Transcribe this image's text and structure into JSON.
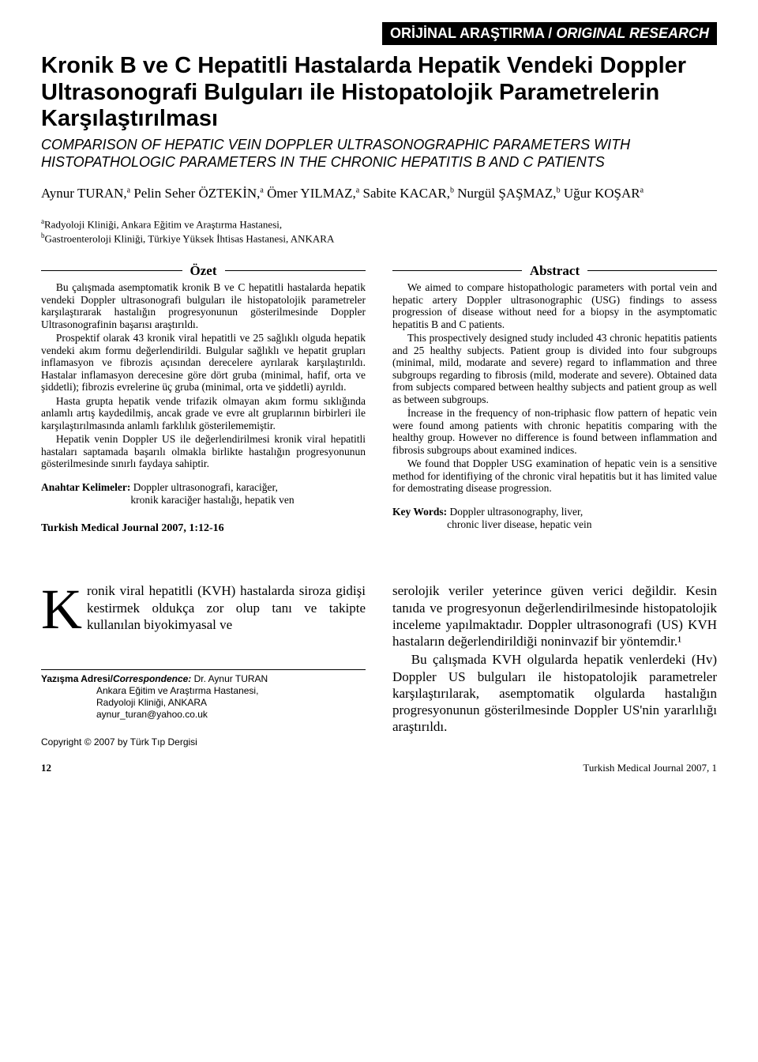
{
  "banner": {
    "left": "ORİJİNAL ARAŞTIRMA / ",
    "right": "ORIGINAL RESEARCH"
  },
  "title": "Kronik B ve C Hepatitli Hastalarda Hepatik Vendeki Doppler Ultrasonografi Bulguları ile Histopatolojik Parametrelerin Karşılaştırılması",
  "subtitle": "COMPARISON OF HEPATIC VEIN DOPPLER ULTRASONOGRAPHIC PARAMETERS WITH HISTOPATHOLOGIC PARAMETERS IN THE CHRONIC HEPATITIS B AND C PATIENTS",
  "authors_html": "Aynur TURAN,<sup>a</sup> Pelin Seher ÖZTEKİN,<sup>a</sup> Ömer YILMAZ,<sup>a</sup> Sabite KACAR,<sup>b</sup> Nurgül ŞAŞMAZ,<sup>b</sup> Uğur KOŞAR<sup>a</sup>",
  "affil_html": "<sup>a</sup>Radyoloji Kliniği, Ankara Eğitim ve Araştırma Hastanesi,<br><sup>b</sup>Gastroenteroloji Kliniği, Türkiye Yüksek İhtisas Hastanesi, ANKARA",
  "ozet": {
    "label": "Özet",
    "paras": [
      "Bu çalışmada asemptomatik kronik B ve C hepatitli hastalarda hepatik vendeki Doppler ultrasonografi bulguları ile histopatolojik parametreler karşılaştırarak hastalığın progresyonunun gösterilmesinde Doppler Ultrasonografinin başarısı araştırıldı.",
      "Prospektif olarak 43 kronik viral hepatitli ve 25 sağlıklı olguda hepatik vendeki akım formu değerlendirildi. Bulgular sağlıklı ve hepatit grupları inflamasyon ve fibrozis açısından derecelere ayrılarak karşılaştırıldı. Hastalar inflamasyon derecesine göre dört gruba (minimal, hafif, orta ve şiddetli); fibrozis evrelerine üç gruba (minimal, orta ve şiddetli) ayrıldı.",
      "Hasta grupta hepatik vende trifazik olmayan akım formu sıklığında anlamlı artış kaydedilmiş, ancak grade ve evre alt gruplarının birbirleri ile karşılaştırılmasında anlamlı farklılık gösterilememiştir.",
      "Hepatik venin Doppler US ile değerlendirilmesi kronik viral hepatitli hastaları saptamada başarılı olmakla birlikte hastalığın progresyonunun gösterilmesinde sınırlı faydaya sahiptir."
    ]
  },
  "abstract": {
    "label": "Abstract",
    "paras": [
      "We aimed to compare histopathologic parameters with portal vein and hepatic artery Doppler ultrasonographic (USG) findings to assess progression of disease without need for a biopsy in the asymptomatic hepatitis B and C patients.",
      "This prospectively designed study included 43 chronic hepatitis patients and 25 healthy subjects. Patient group is divided into four subgroups (minimal, mild, modarate and severe) regard to inflammation and three subgroups regarding to fibrosis (mild, moderate and severe). Obtained data from subjects compared between healthy subjects and patient group as well as between subgroups.",
      "İncrease in the frequency of non-triphasic flow pattern of hepatic vein were found among patients with chronic hepatitis comparing with the healthy group. However no difference is found between inflammation and fibrosis subgroups about examined indices.",
      "We found that Doppler USG examination of hepatic vein is a sensitive method for identifiying of the chronic viral hepatitis but it has limited value for demostrating disease progression."
    ]
  },
  "kw_tr": {
    "label": "Anahtar Kelimeler:",
    "l1": " Doppler ultrasonografi, karaciğer,",
    "l2": "kronik karaciğer hastalığı, hepatik ven"
  },
  "kw_en": {
    "label": "Key Words:",
    "l1": " Doppler ultrasonography, liver,",
    "l2": "chronic liver disease, hepatic vein"
  },
  "journal_ref": "Turkish Medical Journal 2007, 1:12-16",
  "body_left": {
    "drop": "K",
    "rest": "ronik viral hepatitli (KVH) hastalarda siroza gidişi kestirmek oldukça zor olup tanı ve takipte kullanılan biyokimyasal ve"
  },
  "body_right": [
    "serolojik veriler yeterince güven verici değildir. Kesin tanıda ve progresyonun değerlendirilmesinde histopatolojik inceleme yapılmaktadır. Doppler ultrasonografi (US) KVH hastaların değerlendirildiği noninvazif bir yöntemdir.¹",
    "Bu çalışmada KVH olgularda hepatik venlerdeki (Hv) Doppler US bulguları ile histopatolojik parametreler karşılaştırılarak, asemptomatik olgularda hastalığın progresyonunun gösterilmesinde Doppler US'nin yararlılığı araştırıldı."
  ],
  "corr": {
    "label": "Yazışma Adresi/",
    "label_it": "Correspondence:",
    "name": " Dr. Aynur TURAN",
    "l1": "Ankara Eğitim ve Araştırma Hastanesi,",
    "l2": "Radyoloji Kliniği, ANKARA",
    "l3": "aynur_turan@yahoo.co.uk"
  },
  "copyright": "Copyright © 2007 by Türk Tıp Dergisi",
  "footer": {
    "page": "12",
    "ref": "Turkish Medical Journal 2007, 1"
  }
}
